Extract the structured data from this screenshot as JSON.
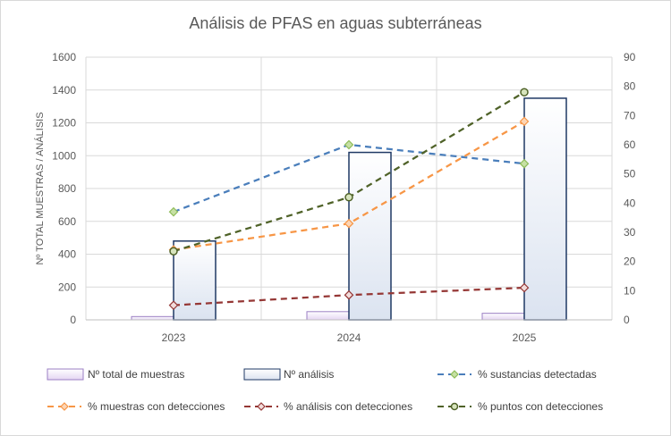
{
  "chart_data": {
    "type": "bar",
    "title": "Análisis de PFAS en aguas subterráneas",
    "ylabel": "Nº TOTAL MUESTRAS / ANÁLISIS",
    "y2label": "",
    "categories": [
      "2023",
      "2024",
      "2025"
    ],
    "ylim": [
      0,
      1600
    ],
    "yticks": [
      "0",
      "200",
      "400",
      "600",
      "800",
      "1000",
      "1200",
      "1400",
      "1600"
    ],
    "y2lim": [
      0,
      90
    ],
    "y2ticks": [
      "0",
      "10",
      "20",
      "30",
      "40",
      "50",
      "60",
      "70",
      "80",
      "90"
    ],
    "grid": true,
    "legend_position": "bottom",
    "bar_series": [
      {
        "name": "Nº total de muestras",
        "values": [
          20,
          50,
          40
        ],
        "axis": "left",
        "fill": "#e4d5f2",
        "stroke": "#9b7fc4"
      },
      {
        "name": "Nº análisis",
        "values": [
          480,
          1020,
          1350
        ],
        "axis": "left",
        "fill": "#dbe3f0",
        "stroke": "#1f3864"
      }
    ],
    "line_series": [
      {
        "name": "% sustancias detectadas",
        "values": [
          37,
          60,
          53.5
        ],
        "axis": "right",
        "color": "#4a7ebb",
        "marker": "diamond",
        "marker_fill": "#c6e0a4",
        "marker_stroke": "#8fbc5a"
      },
      {
        "name": "% muestras con detecciones",
        "values": [
          24,
          33,
          68
        ],
        "axis": "right",
        "color": "#f79646",
        "marker": "diamond",
        "marker_fill": "#fcd5b5",
        "marker_stroke": "#f79646"
      },
      {
        "name": "% análisis con detecciones",
        "values": [
          5,
          8.5,
          11
        ],
        "axis": "right",
        "color": "#953735",
        "marker": "diamond",
        "marker_fill": "#f2dcdb",
        "marker_stroke": "#953735"
      },
      {
        "name": "% puntos con detecciones",
        "values": [
          23.5,
          42,
          78
        ],
        "axis": "right",
        "color": "#4f6228",
        "marker": "circle",
        "marker_fill": "#d7e4bd",
        "marker_stroke": "#4f6228"
      }
    ],
    "grid_color": "#d9d9d9",
    "axis_color": "#bfbfbf",
    "text_color": "#595959"
  }
}
